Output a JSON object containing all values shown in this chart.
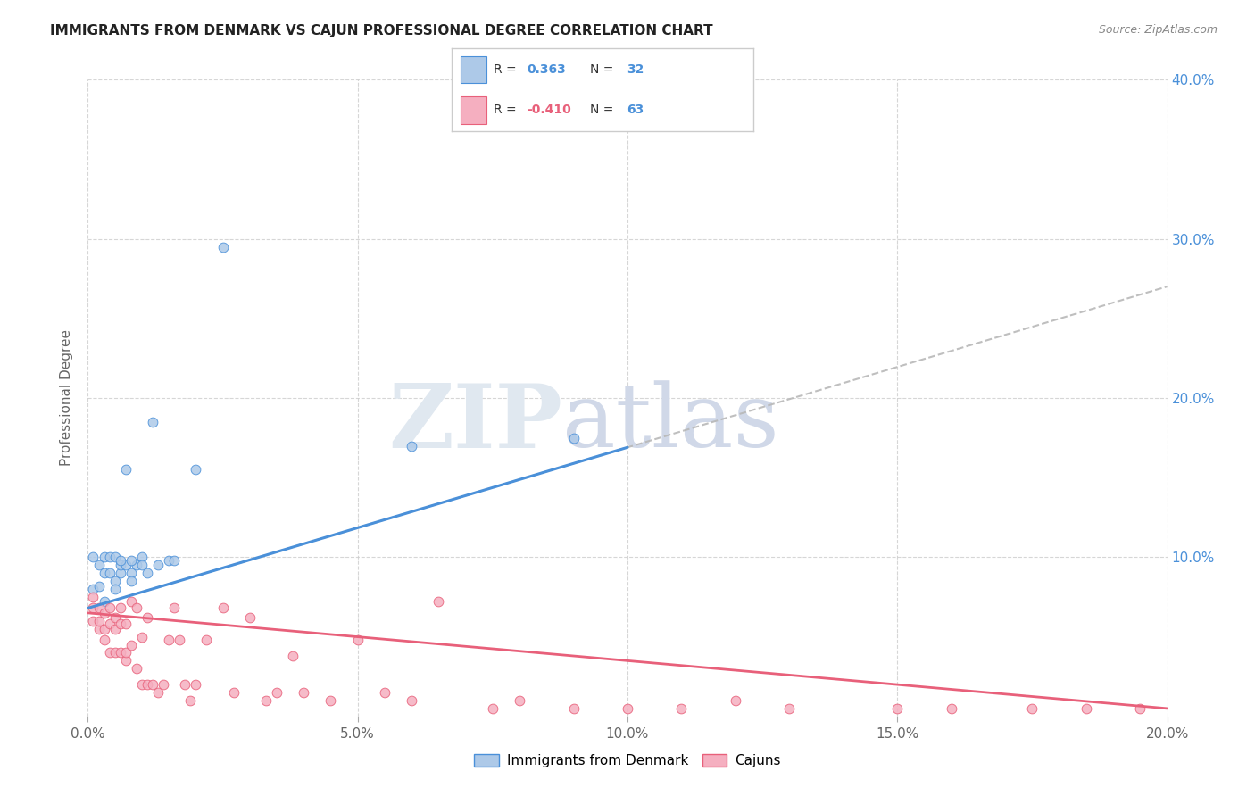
{
  "title": "IMMIGRANTS FROM DENMARK VS CAJUN PROFESSIONAL DEGREE CORRELATION CHART",
  "source": "Source: ZipAtlas.com",
  "ylabel": "Professional Degree",
  "xlim": [
    0.0,
    0.2
  ],
  "ylim": [
    0.0,
    0.4
  ],
  "xtick_labels": [
    "0.0%",
    "5.0%",
    "10.0%",
    "15.0%",
    "20.0%"
  ],
  "xtick_vals": [
    0.0,
    0.05,
    0.1,
    0.15,
    0.2
  ],
  "ytick_labels": [
    "10.0%",
    "20.0%",
    "30.0%",
    "40.0%"
  ],
  "ytick_vals": [
    0.1,
    0.2,
    0.3,
    0.4
  ],
  "denmark_color": "#adc9e8",
  "cajun_color": "#f5afc0",
  "denmark_line_color": "#4a90d9",
  "cajun_line_color": "#e8607a",
  "gray_dash_color": "#b8b8b8",
  "R_denmark": 0.363,
  "N_denmark": 32,
  "R_cajun": -0.41,
  "N_cajun": 63,
  "legend_label_denmark": "Immigrants from Denmark",
  "legend_label_cajun": "Cajuns",
  "background_color": "#ffffff",
  "denmark_trend_x_start": 0.0,
  "denmark_trend_x_solid_end": 0.1,
  "denmark_trend_x_dash_end": 0.2,
  "denmark_trend_y_at_0": 0.068,
  "denmark_trend_y_at_020": 0.27,
  "cajun_trend_y_at_0": 0.065,
  "cajun_trend_y_at_020": 0.005,
  "denmark_points_x": [
    0.001,
    0.002,
    0.003,
    0.003,
    0.004,
    0.004,
    0.005,
    0.005,
    0.006,
    0.006,
    0.007,
    0.007,
    0.008,
    0.008,
    0.009,
    0.01,
    0.01,
    0.011,
    0.012,
    0.013,
    0.015,
    0.016,
    0.001,
    0.002,
    0.003,
    0.005,
    0.006,
    0.008,
    0.02,
    0.025,
    0.06,
    0.09
  ],
  "denmark_points_y": [
    0.1,
    0.095,
    0.09,
    0.1,
    0.09,
    0.1,
    0.085,
    0.1,
    0.09,
    0.095,
    0.095,
    0.155,
    0.09,
    0.085,
    0.095,
    0.1,
    0.095,
    0.09,
    0.185,
    0.095,
    0.098,
    0.098,
    0.08,
    0.082,
    0.072,
    0.08,
    0.098,
    0.098,
    0.155,
    0.295,
    0.17,
    0.175
  ],
  "cajun_points_x": [
    0.001,
    0.001,
    0.001,
    0.002,
    0.002,
    0.002,
    0.003,
    0.003,
    0.003,
    0.004,
    0.004,
    0.004,
    0.005,
    0.005,
    0.005,
    0.006,
    0.006,
    0.006,
    0.007,
    0.007,
    0.007,
    0.008,
    0.008,
    0.009,
    0.009,
    0.01,
    0.01,
    0.011,
    0.011,
    0.012,
    0.013,
    0.014,
    0.015,
    0.016,
    0.017,
    0.018,
    0.019,
    0.02,
    0.022,
    0.025,
    0.027,
    0.03,
    0.033,
    0.035,
    0.038,
    0.04,
    0.045,
    0.05,
    0.055,
    0.06,
    0.065,
    0.075,
    0.08,
    0.09,
    0.1,
    0.11,
    0.12,
    0.13,
    0.15,
    0.16,
    0.175,
    0.185,
    0.195
  ],
  "cajun_points_y": [
    0.06,
    0.068,
    0.075,
    0.055,
    0.06,
    0.068,
    0.048,
    0.055,
    0.065,
    0.04,
    0.058,
    0.068,
    0.04,
    0.055,
    0.062,
    0.04,
    0.058,
    0.068,
    0.035,
    0.058,
    0.04,
    0.045,
    0.072,
    0.03,
    0.068,
    0.02,
    0.05,
    0.02,
    0.062,
    0.02,
    0.015,
    0.02,
    0.048,
    0.068,
    0.048,
    0.02,
    0.01,
    0.02,
    0.048,
    0.068,
    0.015,
    0.062,
    0.01,
    0.015,
    0.038,
    0.015,
    0.01,
    0.048,
    0.015,
    0.01,
    0.072,
    0.005,
    0.01,
    0.005,
    0.005,
    0.005,
    0.01,
    0.005,
    0.005,
    0.005,
    0.005,
    0.005,
    0.005
  ]
}
